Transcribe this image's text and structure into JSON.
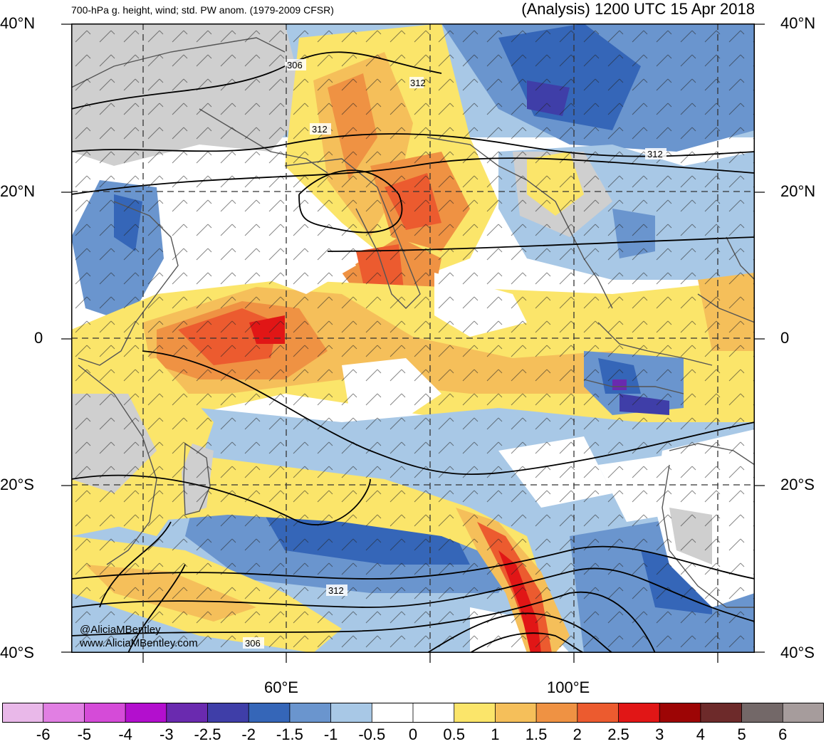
{
  "header": {
    "left_title": "700-hPa g. height, wind; std. PW anom. (1979-2009 CFSR)",
    "right_title": "(Analysis) 1200 UTC 15 Apr 2018"
  },
  "axes": {
    "lat_labels": [
      "40°N",
      "20°N",
      "0",
      "20°S",
      "40°S"
    ],
    "lon_labels": [
      "60°E",
      "100°E"
    ]
  },
  "map": {
    "region": "Indian Ocean",
    "contour_labels": [
      "306",
      "312",
      "312",
      "312",
      "312",
      "306"
    ],
    "colors": {
      "land_gray": "#cfcfcf",
      "contour": "#000000",
      "coast": "#555555",
      "grid": "#333333"
    }
  },
  "credits": {
    "handle": "@AliciaMBentley",
    "site": "www.AliciaMBentley.com"
  },
  "colorbar": {
    "labels": [
      "-6",
      "-5",
      "-4",
      "-3",
      "-2.5",
      "-2",
      "-1.5",
      "-1",
      "-0.5",
      "0",
      "0.5",
      "1",
      "1.5",
      "2",
      "2.5",
      "3",
      "4",
      "5",
      "6"
    ],
    "colors": [
      "#e9b8e9",
      "#e17fe3",
      "#d54bd8",
      "#b30fce",
      "#6a2aaf",
      "#3f3ea8",
      "#3566b8",
      "#6a95ce",
      "#a8c8e6",
      "#ffffff",
      "#ffffff",
      "#fbe56a",
      "#f5bf5a",
      "#ef9243",
      "#ec5b2f",
      "#e11616",
      "#9d0505",
      "#6d2a2a",
      "#736868",
      "#a69c9c"
    ]
  }
}
